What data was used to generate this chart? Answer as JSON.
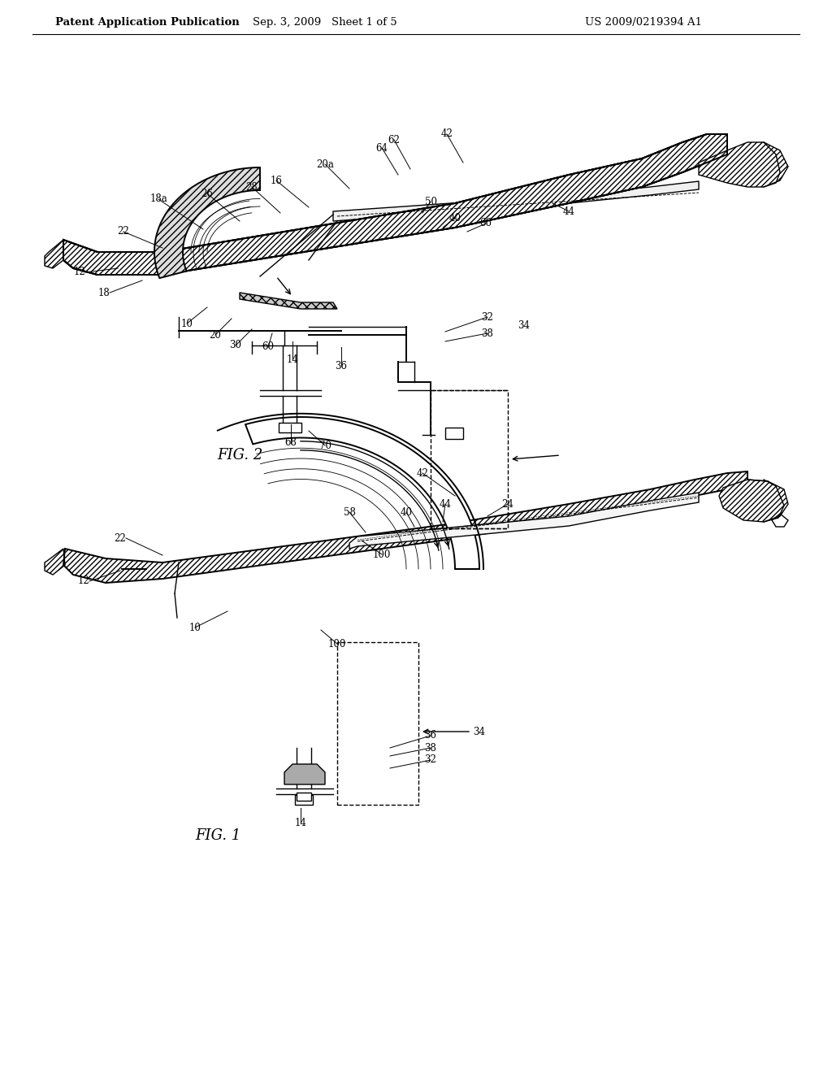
{
  "background_color": "#ffffff",
  "header_text_left": "Patent Application Publication",
  "header_text_mid": "Sep. 3, 2009   Sheet 1 of 5",
  "header_text_right": "US 2009/0219394 A1",
  "header_fontsize": 9.5,
  "fig2_label": "FIG. 2",
  "fig1_label": "FIG. 1",
  "line_color": "#000000",
  "label_fontsize": 8.5
}
